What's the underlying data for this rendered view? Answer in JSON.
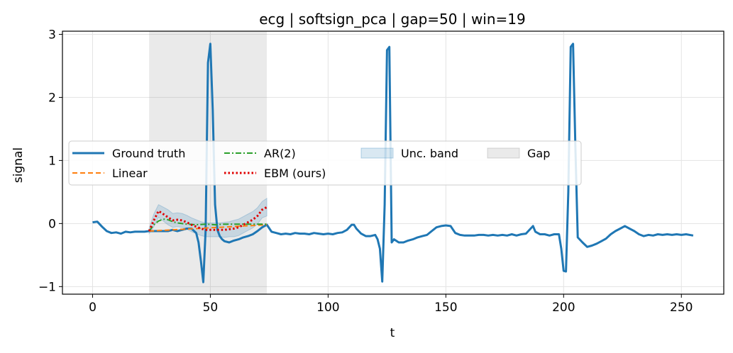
{
  "chart_data": {
    "type": "line",
    "title": "ecg | softsign_pca | gap=50 | win=19",
    "xlabel": "t",
    "ylabel": "signal",
    "xlim": [
      -12.8,
      268
    ],
    "ylim": [
      -1.12,
      3.05
    ],
    "xticks": [
      0,
      50,
      100,
      150,
      200,
      250
    ],
    "yticks": [
      -1,
      0,
      1,
      2,
      3
    ],
    "xtick_labels": [
      "0",
      "50",
      "100",
      "150",
      "200",
      "250"
    ],
    "ytick_labels": [
      "−1",
      "0",
      "1",
      "2",
      "3"
    ],
    "grid": true,
    "legend_placement": "center-left",
    "gap_region": [
      24,
      74
    ],
    "series": [
      {
        "name": "Ground truth",
        "color": "#1f77b4",
        "style": "solid",
        "x": [
          0,
          2,
          4,
          6,
          8,
          10,
          12,
          14,
          16,
          18,
          20,
          22,
          24,
          26,
          28,
          30,
          32,
          34,
          36,
          38,
          40,
          42,
          44,
          45,
          46,
          47,
          48,
          49,
          50,
          51,
          52,
          53,
          54,
          55,
          56,
          58,
          60,
          62,
          64,
          66,
          68,
          70,
          72,
          74,
          76,
          78,
          80,
          82,
          84,
          86,
          88,
          90,
          92,
          94,
          96,
          98,
          100,
          102,
          104,
          106,
          108,
          110,
          111,
          112,
          114,
          116,
          118,
          120,
          121,
          122,
          123,
          124,
          125,
          126,
          127,
          128,
          130,
          132,
          134,
          136,
          138,
          140,
          142,
          144,
          146,
          148,
          150,
          152,
          154,
          156,
          158,
          160,
          162,
          164,
          166,
          168,
          170,
          172,
          174,
          176,
          178,
          180,
          182,
          184,
          186,
          187,
          188,
          190,
          192,
          194,
          196,
          198,
          199,
          200,
          201,
          202,
          203,
          204,
          205,
          206,
          208,
          210,
          212,
          214,
          216,
          218,
          220,
          222,
          224,
          226,
          228,
          230,
          232,
          234,
          236,
          238,
          240,
          242,
          244,
          246,
          248,
          250,
          252,
          255
        ],
        "y": [
          0.02,
          0.03,
          -0.05,
          -0.12,
          -0.15,
          -0.14,
          -0.16,
          -0.13,
          -0.14,
          -0.13,
          -0.13,
          -0.13,
          -0.12,
          -0.12,
          -0.12,
          -0.12,
          -0.12,
          -0.1,
          -0.12,
          -0.1,
          -0.08,
          -0.08,
          -0.15,
          -0.3,
          -0.6,
          -0.93,
          -0.1,
          2.55,
          2.85,
          1.8,
          0.3,
          -0.1,
          -0.2,
          -0.25,
          -0.28,
          -0.3,
          -0.27,
          -0.25,
          -0.22,
          -0.2,
          -0.17,
          -0.12,
          -0.06,
          -0.02,
          -0.13,
          -0.15,
          -0.17,
          -0.16,
          -0.17,
          -0.15,
          -0.16,
          -0.16,
          -0.17,
          -0.15,
          -0.16,
          -0.17,
          -0.16,
          -0.17,
          -0.15,
          -0.14,
          -0.1,
          -0.02,
          -0.02,
          -0.08,
          -0.16,
          -0.2,
          -0.2,
          -0.18,
          -0.25,
          -0.4,
          -0.92,
          0.3,
          2.75,
          2.8,
          -0.3,
          -0.25,
          -0.3,
          -0.3,
          -0.27,
          -0.25,
          -0.22,
          -0.2,
          -0.18,
          -0.12,
          -0.06,
          -0.04,
          -0.03,
          -0.04,
          -0.15,
          -0.18,
          -0.19,
          -0.19,
          -0.19,
          -0.18,
          -0.18,
          -0.19,
          -0.18,
          -0.19,
          -0.18,
          -0.19,
          -0.17,
          -0.19,
          -0.17,
          -0.16,
          -0.08,
          -0.04,
          -0.13,
          -0.17,
          -0.17,
          -0.19,
          -0.17,
          -0.17,
          -0.4,
          -0.75,
          -0.76,
          0.5,
          2.8,
          2.85,
          1.2,
          -0.22,
          -0.3,
          -0.37,
          -0.35,
          -0.32,
          -0.28,
          -0.24,
          -0.17,
          -0.12,
          -0.08,
          -0.04,
          -0.08,
          -0.12,
          -0.17,
          -0.2,
          -0.18,
          -0.19,
          -0.17,
          -0.18,
          -0.17,
          -0.18,
          -0.17,
          -0.18,
          -0.17,
          -0.19
        ]
      },
      {
        "name": "Linear",
        "color": "#ff7f0e",
        "style": "dashed",
        "x": [
          24,
          74
        ],
        "y": [
          -0.12,
          -0.02
        ]
      },
      {
        "name": "AR(2)",
        "color": "#2ca02c",
        "style": "dashdot",
        "x": [
          24,
          26,
          28,
          30,
          32,
          34,
          36,
          38,
          40,
          44,
          48,
          52,
          56,
          60,
          66,
          70,
          74
        ],
        "y": [
          -0.12,
          -0.02,
          0.04,
          0.07,
          0.06,
          0.03,
          0.01,
          0.0,
          -0.01,
          -0.02,
          -0.01,
          -0.02,
          -0.01,
          -0.01,
          -0.01,
          -0.01,
          -0.01
        ]
      },
      {
        "name": "EBM (ours)",
        "color": "#e00000",
        "style": "dotted",
        "x": [
          24,
          26,
          28,
          30,
          32,
          34,
          36,
          38,
          40,
          42,
          44,
          46,
          48,
          50,
          52,
          54,
          56,
          58,
          60,
          62,
          64,
          66,
          68,
          70,
          72,
          74
        ],
        "y": [
          -0.12,
          0.05,
          0.2,
          0.15,
          0.1,
          0.05,
          0.06,
          0.05,
          0.02,
          -0.02,
          -0.05,
          -0.08,
          -0.1,
          -0.1,
          -0.1,
          -0.1,
          -0.1,
          -0.09,
          -0.08,
          -0.06,
          -0.02,
          0.02,
          0.06,
          0.12,
          0.22,
          0.26
        ]
      }
    ],
    "band": {
      "name": "Unc. band",
      "color": "#1f77b4",
      "x": [
        24,
        26,
        28,
        30,
        32,
        34,
        36,
        38,
        40,
        42,
        44,
        46,
        48,
        50,
        52,
        54,
        56,
        58,
        60,
        62,
        64,
        66,
        68,
        70,
        72,
        74
      ],
      "upper": [
        -0.08,
        0.15,
        0.3,
        0.26,
        0.22,
        0.16,
        0.17,
        0.16,
        0.13,
        0.09,
        0.06,
        0.03,
        0.01,
        0.01,
        0.01,
        0.01,
        0.02,
        0.03,
        0.05,
        0.07,
        0.11,
        0.15,
        0.19,
        0.25,
        0.35,
        0.4
      ],
      "lower": [
        -0.16,
        -0.05,
        0.1,
        0.04,
        -0.02,
        -0.06,
        -0.05,
        -0.06,
        -0.09,
        -0.13,
        -0.16,
        -0.19,
        -0.21,
        -0.21,
        -0.21,
        -0.21,
        -0.22,
        -0.21,
        -0.21,
        -0.19,
        -0.15,
        -0.11,
        -0.07,
        -0.01,
        0.09,
        0.12
      ]
    },
    "legend": [
      {
        "label": "Ground truth",
        "kind": "line",
        "color": "#1f77b4",
        "style": "solid"
      },
      {
        "label": "Linear",
        "kind": "line",
        "color": "#ff7f0e",
        "style": "dashed"
      },
      {
        "label": "AR(2)",
        "kind": "line",
        "color": "#2ca02c",
        "style": "dashdot"
      },
      {
        "label": "EBM (ours)",
        "kind": "line",
        "color": "#e00000",
        "style": "dotted"
      },
      {
        "label": "Unc. band",
        "kind": "patch",
        "color": "#1f77b4"
      },
      {
        "label": "Gap",
        "kind": "patch",
        "color": "#808080"
      }
    ]
  }
}
